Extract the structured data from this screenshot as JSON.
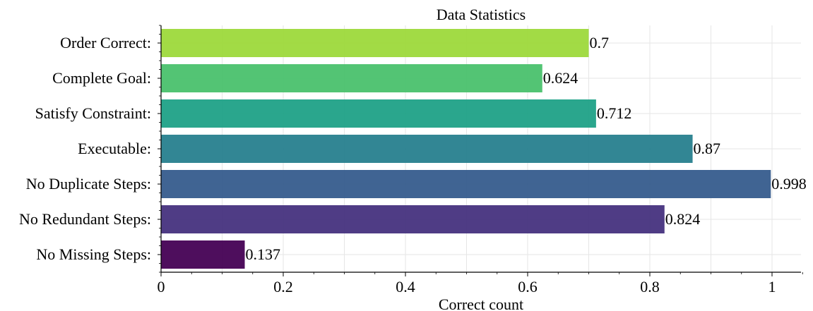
{
  "chart_data": {
    "type": "bar",
    "orientation": "horizontal",
    "title": "Data Statistics",
    "xlabel": "Correct count",
    "ylabel": "",
    "xlim": [
      0,
      1.05
    ],
    "xticks": [
      0,
      0.2,
      0.4,
      0.6,
      0.8,
      1
    ],
    "xtick_labels": [
      "0",
      "0.2",
      "0.4",
      "0.6",
      "0.8",
      "1"
    ],
    "grid": true,
    "categories": [
      "Order Correct:",
      "Complete Goal:",
      "Satisfy Constraint:",
      "Executable:",
      "No Duplicate Steps:",
      "No Redundant Steps:",
      "No Missing Steps:"
    ],
    "values": [
      0.7,
      0.624,
      0.712,
      0.87,
      0.998,
      0.824,
      0.137
    ],
    "value_labels": [
      "0.7",
      "0.624",
      "0.712",
      "0.87",
      "0.998",
      "0.824",
      "0.137"
    ],
    "colors": [
      "#9dd93b",
      "#4ac16d",
      "#1fa187",
      "#277f8e",
      "#365c8d",
      "#46327e",
      "#440154"
    ]
  }
}
